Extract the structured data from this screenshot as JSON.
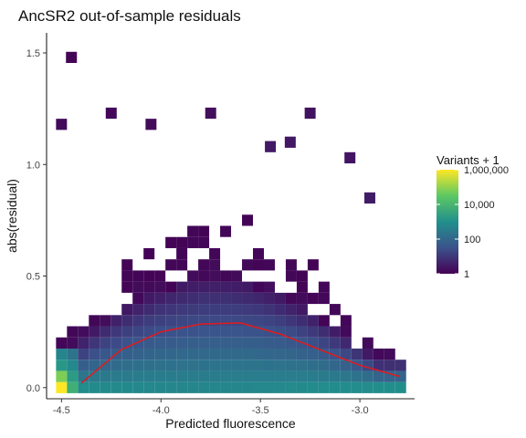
{
  "chart_data": {
    "type": "heatmap",
    "title": "AncSR2 out-of-sample residuals",
    "xlabel": "Predicted fluorescence",
    "ylabel": "abs(residual)",
    "xlim": [
      -4.575,
      -2.725
    ],
    "ylim": [
      -0.05,
      1.59
    ],
    "x_ticks": [
      -4.5,
      -4.0,
      -3.5,
      -3.0
    ],
    "x_tick_labels": [
      "-4.5",
      "-4.0",
      "-3.5",
      "-3.0"
    ],
    "y_ticks": [
      0.0,
      0.5,
      1.0,
      1.5
    ],
    "y_tick_labels": [
      "0.0",
      "0.5",
      "1.0",
      "1.5"
    ],
    "bin_width_x": 0.055,
    "bin_width_y": 0.05,
    "x_origin": -4.5,
    "y_origin": 0.0,
    "color_scale": {
      "name": "viridis",
      "transform": "log10",
      "colors": [
        "#440154",
        "#3b528b",
        "#21908c",
        "#5dc863",
        "#fde725"
      ],
      "domain": [
        0,
        6
      ]
    },
    "legend": {
      "title": "Variants + 1",
      "labels": [
        "1,000,000",
        "10,000",
        "100",
        "1"
      ],
      "values": [
        6,
        4,
        2,
        0
      ]
    },
    "trend_line": {
      "color": "#e31a1c",
      "points": [
        {
          "x": -4.4,
          "y": 0.02
        },
        {
          "x": -4.2,
          "y": 0.17
        },
        {
          "x": -4.0,
          "y": 0.25
        },
        {
          "x": -3.8,
          "y": 0.285
        },
        {
          "x": -3.6,
          "y": 0.29
        },
        {
          "x": -3.4,
          "y": 0.24
        },
        {
          "x": -3.2,
          "y": 0.17
        },
        {
          "x": -3.0,
          "y": 0.1
        },
        {
          "x": -2.8,
          "y": 0.05
        }
      ]
    },
    "grid": false
  }
}
